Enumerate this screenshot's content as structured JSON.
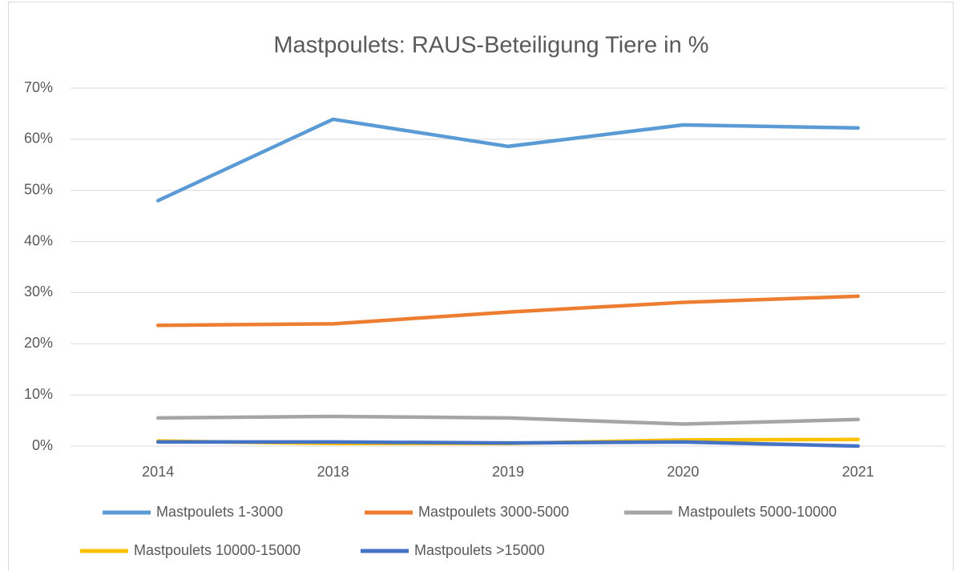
{
  "chart_data": {
    "type": "line",
    "title": "Mastpoulets: RAUS-Beteiligung Tiere in %",
    "categories": [
      "2014",
      "2018",
      "2019",
      "2020",
      "2021"
    ],
    "series": [
      {
        "name": "Mastpoulets 1-3000",
        "color": "#5b9bd5",
        "values": [
          48.0,
          63.9,
          58.6,
          62.8,
          62.2
        ]
      },
      {
        "name": "Mastpoulets 3000-5000",
        "color": "#ed7d31",
        "values": [
          23.6,
          23.9,
          26.2,
          28.1,
          29.3
        ]
      },
      {
        "name": "Mastpoulets 5000-10000",
        "color": "#a5a5a5",
        "values": [
          5.5,
          5.8,
          5.5,
          4.3,
          5.2
        ]
      },
      {
        "name": "Mastpoulets 10000-15000",
        "color": "#ffc000",
        "values": [
          1.0,
          0.5,
          0.5,
          1.2,
          1.3
        ]
      },
      {
        "name": "Mastpoulets >15000",
        "color": "#4472c4",
        "values": [
          0.8,
          0.8,
          0.6,
          0.8,
          0.0
        ]
      }
    ],
    "ylim": [
      0,
      70
    ],
    "yticks": [
      {
        "value": 0,
        "label": "0%"
      },
      {
        "value": 10,
        "label": "10%"
      },
      {
        "value": 20,
        "label": "20%"
      },
      {
        "value": 30,
        "label": "30%"
      },
      {
        "value": 40,
        "label": "40%"
      },
      {
        "value": 50,
        "label": "50%"
      },
      {
        "value": 60,
        "label": "60%"
      },
      {
        "value": 70,
        "label": "70%"
      }
    ],
    "grid": true,
    "legend": "bottom"
  }
}
